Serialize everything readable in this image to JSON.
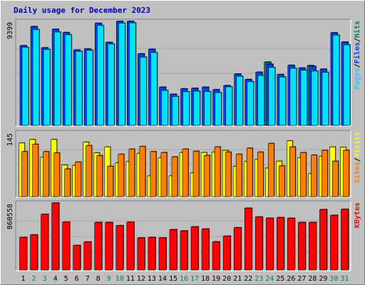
{
  "chart_data": {
    "type": "bar",
    "title": "Daily usage for December 2023",
    "categories": [
      "1",
      "2",
      "3",
      "4",
      "5",
      "6",
      "7",
      "8",
      "9",
      "10",
      "11",
      "12",
      "13",
      "14",
      "15",
      "16",
      "17",
      "18",
      "19",
      "20",
      "21",
      "22",
      "23",
      "24",
      "25",
      "26",
      "27",
      "28",
      "29",
      "30",
      "31"
    ],
    "weekend_days": [
      "2",
      "3",
      "9",
      "10",
      "16",
      "17",
      "23",
      "24",
      "30",
      "31"
    ],
    "panels": [
      {
        "name": "top",
        "max_label": "9399",
        "ylim": [
          0,
          9399
        ],
        "legend": [
          "Pages",
          "Files",
          "Hits"
        ],
        "series": [
          {
            "name": "Hits",
            "color": "#00805c",
            "values": [
              0,
              0,
              0,
              0,
              0,
              0,
              0,
              0,
              0,
              0,
              0,
              0,
              0,
              0,
              0,
              0,
              0,
              0,
              0,
              0,
              0,
              0,
              0,
              5800,
              0,
              0,
              0,
              5480,
              0,
              0,
              0
            ]
          },
          {
            "name": "Files",
            "color": "#0040ff",
            "values": [
              7300,
              9050,
              7100,
              8800,
              8500,
              6900,
              7000,
              9350,
              7600,
              9570,
              9570,
              6550,
              6970,
              3500,
              2850,
              3350,
              3400,
              3500,
              3270,
              3640,
              4700,
              4200,
              4870,
              5600,
              4650,
              5500,
              5250,
              5400,
              5150,
              8480,
              7630
            ]
          },
          {
            "name": "Pages",
            "color": "#00e0ff",
            "values": [
              7150,
              8780,
              6950,
              8550,
              8300,
              6780,
              6870,
              9150,
              7450,
              9370,
              9390,
              6250,
              6670,
              3200,
              2650,
              3080,
              3130,
              3100,
              3000,
              3530,
              4500,
              4000,
              4570,
              5300,
              4430,
              5230,
              5050,
              4970,
              4860,
              8270,
              7380
            ]
          }
        ]
      },
      {
        "name": "middle",
        "max_label": "145",
        "ylim": [
          0,
          145
        ],
        "legend": [
          "Sites",
          "Visits"
        ],
        "series": [
          {
            "name": "Visits",
            "color": "#ffff00",
            "values": [
              124,
              132,
              91,
              132,
              73,
              72,
              126,
              101,
              115,
              78,
              81,
              100,
              48,
              90,
              48,
              102,
              55,
              102,
              103,
              107,
              70,
              81,
              86,
              66,
              82,
              129,
              90,
              53,
              93,
              115,
              114
            ]
          },
          {
            "name": "Sites",
            "color": "#ff8000",
            "values": [
              104,
              121,
              104,
              101,
              64,
              80,
              118,
              95,
              70,
              98,
              110,
              116,
              104,
              102,
              92,
              110,
              105,
              95,
              115,
              103,
              98,
              112,
              103,
              123,
              71,
              115,
              102,
              96,
              107,
              82,
              107
            ]
          }
        ]
      },
      {
        "name": "bottom",
        "max_label": "860558",
        "ylim": [
          0,
          860558
        ],
        "legend": [
          "KBytes"
        ],
        "series": [
          {
            "name": "KBytes",
            "color": "#ff0000",
            "values": [
              427000,
              461000,
              731000,
              880000,
              628000,
              322000,
              368000,
              624000,
              624000,
              582000,
              628000,
              421000,
              427000,
              421000,
              530000,
              513000,
              567000,
              538000,
              370000,
              444000,
              555000,
              811000,
              696000,
              680000,
              688000,
              679000,
              624000,
              624000,
              793000,
              718000,
              797000
            ]
          }
        ]
      }
    ]
  }
}
